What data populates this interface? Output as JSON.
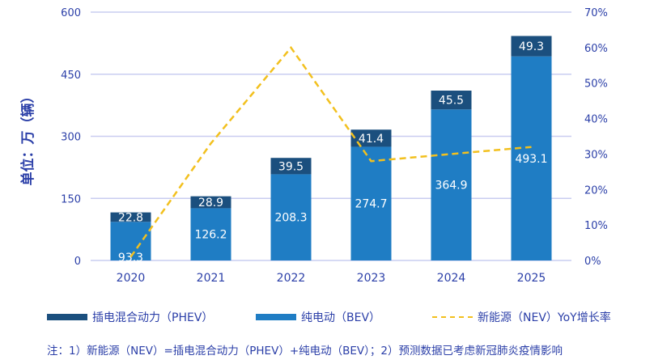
{
  "chart_data": {
    "type": "bar",
    "stacked": true,
    "categories": [
      "2020",
      "2021",
      "2022",
      "2023",
      "2024",
      "2025"
    ],
    "series": [
      {
        "name": "纯电动（BEV）",
        "values": [
          93.3,
          126.2,
          208.3,
          274.7,
          364.9,
          493.1
        ],
        "color": "#1f7dc4"
      },
      {
        "name": "插电混合动力（PHEV）",
        "values": [
          22.8,
          28.9,
          39.5,
          41.4,
          45.5,
          49.3
        ],
        "color": "#1b4f7e"
      }
    ],
    "line_series": {
      "name": "新能源（NEV）YoY增长率",
      "values": [
        1,
        33,
        60,
        28,
        30,
        32
      ],
      "axis": "right",
      "color": "#f2c01e",
      "style": "dashed"
    },
    "ylabel": "单位：万（辆）",
    "ylim": [
      0,
      600
    ],
    "y_ticks": [
      "0",
      "150",
      "300",
      "450",
      "600"
    ],
    "y2lim": [
      0,
      70
    ],
    "y2_ticks": [
      "0%",
      "10%",
      "20%",
      "30%",
      "40%",
      "50%",
      "60%",
      "70%"
    ],
    "grid": true,
    "legend_position": "bottom"
  },
  "legend": {
    "phev": "插电混合动力（PHEV）",
    "bev": "纯电动（BEV）",
    "nev": "新能源（NEV）YoY增长率"
  },
  "note": "注：1）新能源（NEV）=插电混合动力（PHEV）+纯电动（BEV）；2）预测数据已考虑新冠肺炎疫情影响",
  "colors": {
    "text": "#2b3fa8",
    "grid": "#c9cdf0",
    "bev": "#1f7dc4",
    "phev": "#1b4f7e",
    "nev": "#f2c01e"
  }
}
